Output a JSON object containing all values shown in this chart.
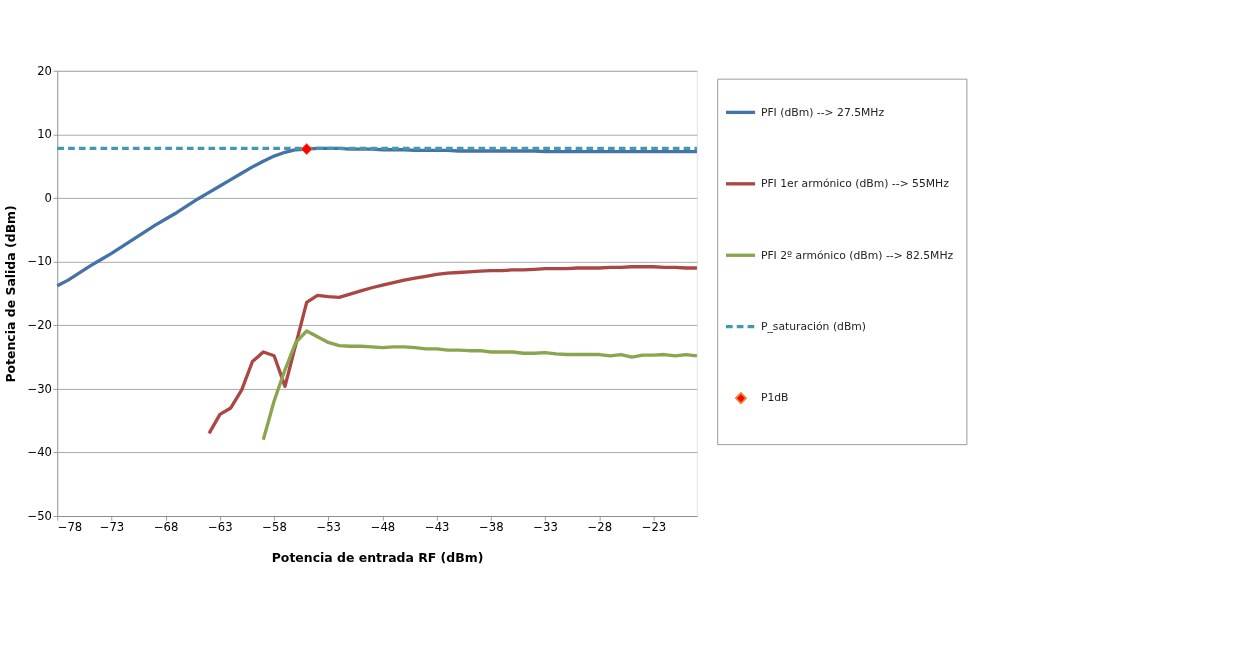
{
  "chart_data": {
    "type": "line",
    "xlabel": "Potencia de entrada RF (dBm)",
    "ylabel": "Potencia de Salida (dBm)",
    "xlim": [
      -78,
      -19
    ],
    "xticks": [
      -78,
      -73,
      -68,
      -63,
      -58,
      -53,
      -48,
      -43,
      -38,
      -33,
      -28,
      -23
    ],
    "ylim": [
      -50,
      20
    ],
    "yticks": [
      -50,
      -40,
      -30,
      -20,
      -10,
      0,
      10,
      20
    ],
    "grid": "y",
    "legend": "right",
    "series": [
      {
        "name": "PFI (dBm) --> 27.5MHz",
        "color": "#4572a7",
        "type": "line",
        "line_style": "solid",
        "x": [
          -78,
          -77,
          -76,
          -75,
          -74,
          -73,
          -72,
          -71,
          -70,
          -69,
          -68,
          -67,
          -66,
          -65,
          -64,
          -63,
          -62,
          -61,
          -60,
          -59,
          -58,
          -57,
          -56,
          -55,
          -54,
          -53,
          -52,
          -51,
          -50,
          -49,
          -48,
          -47,
          -46,
          -45,
          -44,
          -43,
          -42,
          -41,
          -40,
          -39,
          -38,
          -37,
          -36,
          -35,
          -34,
          -33,
          -32,
          -31,
          -30,
          -29,
          -28,
          -27,
          -26,
          -25,
          -24,
          -23,
          -22,
          -21,
          -20,
          -19
        ],
        "values": [
          -13.8,
          -12.9,
          -11.8,
          -10.7,
          -9.7,
          -8.7,
          -7.6,
          -6.5,
          -5.4,
          -4.3,
          -3.3,
          -2.3,
          -1.2,
          -0.1,
          0.9,
          1.9,
          2.9,
          3.9,
          4.9,
          5.8,
          6.6,
          7.2,
          7.6,
          7.7,
          7.8,
          7.8,
          7.8,
          7.7,
          7.7,
          7.7,
          7.6,
          7.6,
          7.6,
          7.5,
          7.5,
          7.5,
          7.5,
          7.4,
          7.4,
          7.4,
          7.4,
          7.4,
          7.4,
          7.4,
          7.4,
          7.3,
          7.3,
          7.3,
          7.3,
          7.3,
          7.3,
          7.3,
          7.3,
          7.3,
          7.3,
          7.3,
          7.3,
          7.3,
          7.3,
          7.3
        ]
      },
      {
        "name": "PFI 1er armónico (dBm) --> 55MHz",
        "color": "#aa4643",
        "type": "line",
        "line_style": "solid",
        "x": [
          -64,
          -63,
          -62,
          -61,
          -60,
          -59,
          -58,
          -57,
          -56,
          -55,
          -54,
          -53,
          -52,
          -51,
          -50,
          -49,
          -48,
          -47,
          -46,
          -45,
          -44,
          -43,
          -42,
          -41,
          -40,
          -39,
          -38,
          -37,
          -36,
          -35,
          -34,
          -33,
          -32,
          -31,
          -30,
          -29,
          -28,
          -27,
          -26,
          -25,
          -24,
          -23,
          -22,
          -21,
          -20,
          -19
        ],
        "values": [
          -37.0,
          -34.0,
          -33.0,
          -30.2,
          -25.7,
          -24.2,
          -24.8,
          -29.6,
          -23.0,
          -16.4,
          -15.3,
          -15.5,
          -15.6,
          -15.1,
          -14.6,
          -14.1,
          -13.7,
          -13.3,
          -12.9,
          -12.6,
          -12.3,
          -12.0,
          -11.8,
          -11.7,
          -11.6,
          -11.5,
          -11.4,
          -11.4,
          -11.3,
          -11.3,
          -11.2,
          -11.1,
          -11.1,
          -11.1,
          -11.0,
          -11.0,
          -11.0,
          -10.9,
          -10.9,
          -10.8,
          -10.8,
          -10.8,
          -10.9,
          -10.9,
          -11.0,
          -11.0
        ]
      },
      {
        "name": "PFI 2º armónico (dBm) --> 82.5MHz",
        "color": "#89a54e",
        "type": "line",
        "line_style": "solid",
        "x": [
          -59,
          -58,
          -57,
          -56,
          -55,
          -54,
          -53,
          -52,
          -51,
          -50,
          -49,
          -48,
          -47,
          -46,
          -45,
          -44,
          -43,
          -42,
          -41,
          -40,
          -39,
          -38,
          -37,
          -36,
          -35,
          -34,
          -33,
          -32,
          -31,
          -30,
          -29,
          -28,
          -27,
          -26,
          -25,
          -24,
          -23,
          -22,
          -21,
          -20,
          -19
        ],
        "values": [
          -38.0,
          -31.9,
          -27.0,
          -22.7,
          -20.9,
          -21.8,
          -22.7,
          -23.2,
          -23.3,
          -23.3,
          -23.4,
          -23.5,
          -23.4,
          -23.4,
          -23.5,
          -23.7,
          -23.7,
          -23.9,
          -23.9,
          -24.0,
          -24.0,
          -24.2,
          -24.2,
          -24.2,
          -24.4,
          -24.4,
          -24.3,
          -24.5,
          -24.6,
          -24.6,
          -24.6,
          -24.6,
          -24.8,
          -24.6,
          -25.0,
          -24.7,
          -24.7,
          -24.6,
          -24.8,
          -24.6,
          -24.8
        ]
      },
      {
        "name": "P_saturación (dBm)",
        "color": "#4198af",
        "type": "line",
        "line_style": "dashed",
        "x": [
          -78,
          -19
        ],
        "values": [
          7.8,
          7.8
        ]
      },
      {
        "name": "P1dB",
        "color": "#ff0000",
        "type": "scatter",
        "marker": "diamond",
        "x": [
          -55
        ],
        "values": [
          7.7
        ]
      }
    ]
  }
}
